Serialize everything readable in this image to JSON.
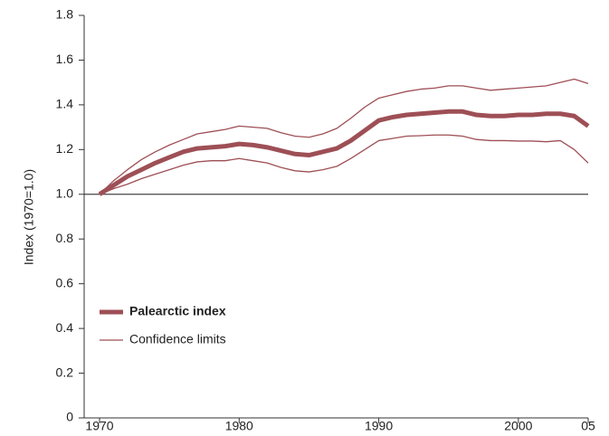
{
  "chart_data": {
    "type": "line",
    "y_label": "Index (1970=1.0)",
    "x": [
      1970,
      1971,
      1972,
      1973,
      1974,
      1975,
      1976,
      1977,
      1978,
      1979,
      1980,
      1981,
      1982,
      1983,
      1984,
      1985,
      1986,
      1987,
      1988,
      1989,
      1990,
      1991,
      1992,
      1993,
      1994,
      1995,
      1996,
      1997,
      1998,
      1999,
      2000,
      2001,
      2002,
      2003,
      2004,
      2005
    ],
    "series": [
      {
        "name": "Palearctic index",
        "color": "#9e4f56",
        "values": [
          1.0,
          1.04,
          1.08,
          1.11,
          1.14,
          1.165,
          1.19,
          1.205,
          1.21,
          1.215,
          1.225,
          1.22,
          1.21,
          1.195,
          1.18,
          1.175,
          1.19,
          1.205,
          1.24,
          1.285,
          1.33,
          1.345,
          1.355,
          1.36,
          1.365,
          1.37,
          1.37,
          1.355,
          1.35,
          1.35,
          1.355,
          1.355,
          1.36,
          1.36,
          1.35,
          1.305
        ]
      },
      {
        "name": "Confidence limits",
        "color": "#9e4f56",
        "values": [
          1.0,
          1.06,
          1.11,
          1.155,
          1.19,
          1.22,
          1.245,
          1.27,
          1.28,
          1.29,
          1.305,
          1.3,
          1.295,
          1.275,
          1.26,
          1.255,
          1.27,
          1.295,
          1.34,
          1.39,
          1.43,
          1.445,
          1.46,
          1.47,
          1.475,
          1.485,
          1.485,
          1.475,
          1.465,
          1.47,
          1.475,
          1.48,
          1.485,
          1.5,
          1.515,
          1.495
        ],
        "lower": [
          1.0,
          1.025,
          1.045,
          1.07,
          1.09,
          1.11,
          1.13,
          1.145,
          1.15,
          1.15,
          1.16,
          1.15,
          1.14,
          1.12,
          1.105,
          1.1,
          1.11,
          1.125,
          1.16,
          1.2,
          1.24,
          1.25,
          1.26,
          1.262,
          1.265,
          1.265,
          1.26,
          1.245,
          1.24,
          1.24,
          1.238,
          1.238,
          1.235,
          1.24,
          1.2,
          1.14
        ]
      }
    ],
    "reference_line": 1,
    "xlim": [
      1970,
      2005
    ],
    "xticks": [
      1970,
      1980,
      1990,
      2000,
      {
        "value": 2005,
        "label": "05"
      }
    ],
    "ylim": [
      0,
      1.8
    ],
    "yticks": [
      0,
      0.2,
      0.4,
      0.6,
      0.8,
      {
        "value": 1,
        "label": "1.0"
      },
      1.2,
      1.4,
      1.6,
      1.8
    ]
  }
}
